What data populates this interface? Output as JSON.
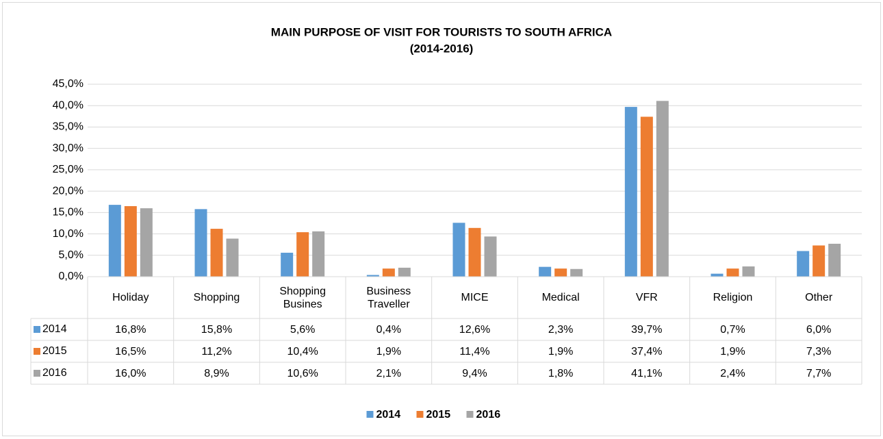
{
  "chart_data": {
    "type": "bar",
    "title": "MAIN PURPOSE OF VISIT FOR TOURISTS TO SOUTH AFRICA",
    "subtitle": "(2014-2016)",
    "categories": [
      "Holiday",
      "Shopping",
      "Shopping Busines",
      "Business Traveller",
      "MICE",
      "Medical",
      "VFR",
      "Religion",
      "Other"
    ],
    "series": [
      {
        "name": "2014",
        "color": "#5b9bd5",
        "values": [
          16.8,
          15.8,
          5.6,
          0.4,
          12.6,
          2.3,
          39.7,
          0.7,
          6.0
        ],
        "value_labels": [
          "16,8%",
          "15,8%",
          "5,6%",
          "0,4%",
          "12,6%",
          "2,3%",
          "39,7%",
          "0,7%",
          "6,0%"
        ]
      },
      {
        "name": "2015",
        "color": "#ed7d31",
        "values": [
          16.5,
          11.2,
          10.4,
          1.9,
          11.4,
          1.9,
          37.4,
          1.9,
          7.3
        ],
        "value_labels": [
          "16,5%",
          "11,2%",
          "10,4%",
          "1,9%",
          "11,4%",
          "1,9%",
          "37,4%",
          "1,9%",
          "7,3%"
        ]
      },
      {
        "name": "2016",
        "color": "#a5a5a5",
        "values": [
          16.0,
          8.9,
          10.6,
          2.1,
          9.4,
          1.8,
          41.1,
          2.4,
          7.7
        ],
        "value_labels": [
          "16,0%",
          "8,9%",
          "10,6%",
          "2,1%",
          "9,4%",
          "1,8%",
          "41,1%",
          "2,4%",
          "7,7%"
        ]
      }
    ],
    "ylim": [
      0,
      45
    ],
    "yticks": [
      {
        "value": 0,
        "label": "0,0%"
      },
      {
        "value": 5,
        "label": "5,0%"
      },
      {
        "value": 10,
        "label": "10,0%"
      },
      {
        "value": 15,
        "label": "15,0%"
      },
      {
        "value": 20,
        "label": "20,0%"
      },
      {
        "value": 25,
        "label": "25,0%"
      },
      {
        "value": 30,
        "label": "30,0%"
      },
      {
        "value": 35,
        "label": "35,0%"
      },
      {
        "value": 40,
        "label": "40,0%"
      },
      {
        "value": 45,
        "label": "45,0%"
      }
    ],
    "grid": true,
    "legend": "bottom"
  }
}
